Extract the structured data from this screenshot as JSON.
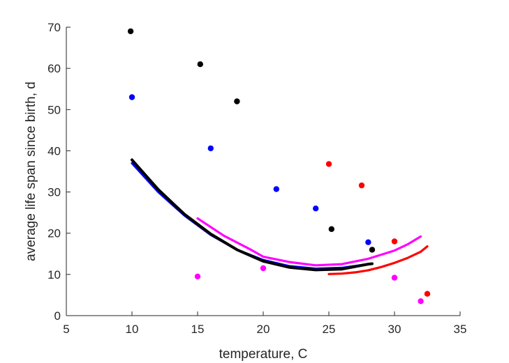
{
  "chart_data": {
    "type": "scatter",
    "title": "",
    "xlabel": "temperature, C",
    "ylabel": "average life span since birth, d",
    "xlim": [
      5,
      35
    ],
    "ylim": [
      0,
      70
    ],
    "xticks": [
      5,
      10,
      15,
      20,
      25,
      30,
      35
    ],
    "yticks": [
      0,
      10,
      20,
      30,
      40,
      50,
      60,
      70
    ],
    "grid": false,
    "legend": false,
    "series": [
      {
        "color": "#000000",
        "points": [
          [
            9.9,
            69
          ],
          [
            15.2,
            61
          ],
          [
            18,
            52
          ],
          [
            25.2,
            21
          ],
          [
            28.3,
            16
          ]
        ],
        "fit_curve": [
          [
            10,
            37.8
          ],
          [
            12,
            30.6
          ],
          [
            14,
            24.6
          ],
          [
            16,
            19.8
          ],
          [
            18,
            16.0
          ],
          [
            20,
            13.2
          ],
          [
            22,
            11.7
          ],
          [
            24,
            11.1
          ],
          [
            26,
            11.3
          ],
          [
            28,
            12.5
          ],
          [
            28.3,
            12.6
          ]
        ]
      },
      {
        "color": "#0000ff",
        "points": [
          [
            10,
            53
          ],
          [
            16,
            40.6
          ],
          [
            21,
            30.7
          ],
          [
            24,
            26
          ],
          [
            28,
            17.8
          ]
        ],
        "fit_curve": [
          [
            10,
            37
          ],
          [
            12,
            30
          ],
          [
            14,
            24.3
          ],
          [
            16,
            19.6
          ],
          [
            18,
            16
          ],
          [
            20,
            13.5
          ],
          [
            22,
            12
          ],
          [
            24,
            11.4
          ],
          [
            26,
            11.6
          ],
          [
            28,
            12.5
          ]
        ]
      },
      {
        "color": "#ff0000",
        "points": [
          [
            25,
            36.8
          ],
          [
            27.5,
            31.6
          ],
          [
            30,
            18
          ],
          [
            32.5,
            5.3
          ]
        ],
        "fit_curve": [
          [
            25,
            10.1
          ],
          [
            26,
            10.2
          ],
          [
            27,
            10.5
          ],
          [
            28,
            11
          ],
          [
            29,
            11.8
          ],
          [
            30,
            12.8
          ],
          [
            31,
            14
          ],
          [
            32,
            15.5
          ],
          [
            32.5,
            16.8
          ]
        ]
      },
      {
        "color": "#ff00ff",
        "points": [
          [
            15,
            9.5
          ],
          [
            20,
            11.5
          ],
          [
            30,
            9.2
          ],
          [
            32,
            3.5
          ]
        ],
        "fit_curve": [
          [
            15,
            23.6
          ],
          [
            17,
            19.4
          ],
          [
            19,
            16.1
          ],
          [
            20,
            14.3
          ],
          [
            22,
            13.0
          ],
          [
            24,
            12.2
          ],
          [
            26,
            12.5
          ],
          [
            28,
            13.8
          ],
          [
            30,
            15.8
          ],
          [
            31,
            17.3
          ],
          [
            32,
            19.2
          ]
        ]
      }
    ]
  }
}
